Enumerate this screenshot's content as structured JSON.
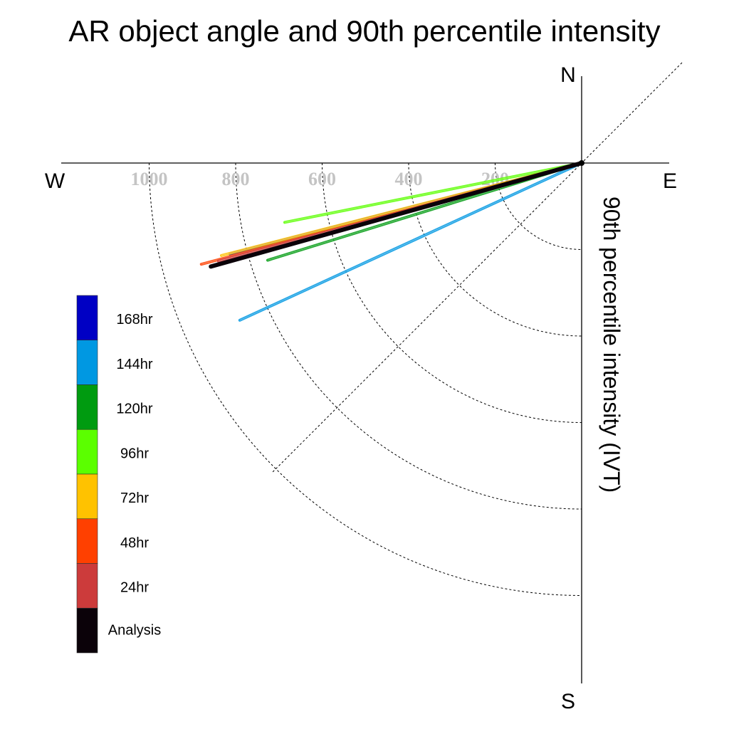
{
  "chart_data": {
    "type": "polar-vector",
    "title": "AR object angle and 90th percentile intensity",
    "radial_label": "90th percentile intensity (IVT)",
    "compass": {
      "north": "N",
      "south": "S",
      "east": "E",
      "west": "W"
    },
    "radial_ticks": [
      200,
      400,
      600,
      800,
      1000
    ],
    "radial_tick_labels": [
      "200",
      "400",
      "600",
      "800",
      "1000"
    ],
    "rlim": [
      0,
      1200
    ],
    "angle_convention": "degrees counter-clockwise from East",
    "series": [
      {
        "name": "Analysis",
        "color": "#0b0209",
        "angle_deg": 195.6,
        "intensity": 890
      },
      {
        "name": "24hr",
        "color": "#cc3b3b",
        "angle_deg": 195.1,
        "intensity": 870
      },
      {
        "name": "48hr",
        "color": "#ff4000",
        "angle_deg": 194.9,
        "intensity": 910
      },
      {
        "name": "72hr",
        "color": "#ffc200",
        "angle_deg": 194.4,
        "intensity": 860
      },
      {
        "name": "96hr",
        "color": "#5bff00",
        "angle_deg": 191.3,
        "intensity": 700
      },
      {
        "name": "120hr",
        "color": "#009b10",
        "angle_deg": 197.2,
        "intensity": 760
      },
      {
        "name": "144hr",
        "color": "#0098e2",
        "angle_deg": 204.7,
        "intensity": 870
      },
      {
        "name": "168hr",
        "color": "#0000c4",
        "angle_deg": 194.5,
        "intensity": 840
      }
    ],
    "legend_order": [
      "168hr",
      "144hr",
      "120hr",
      "96hr",
      "72hr",
      "48hr",
      "24hr",
      "Analysis"
    ],
    "legend_placement": "left"
  }
}
